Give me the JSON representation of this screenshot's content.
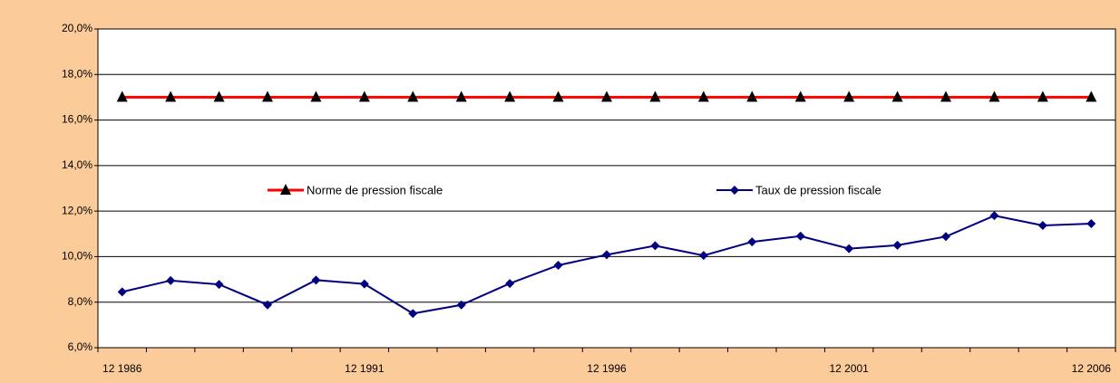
{
  "chart_data": {
    "type": "line",
    "categories": [
      "12 1986",
      null,
      null,
      null,
      null,
      "12 1991",
      null,
      null,
      null,
      null,
      "12 1996",
      null,
      null,
      null,
      null,
      "12 2001",
      null,
      null,
      null,
      null,
      "12 2006"
    ],
    "series": [
      {
        "name": "Norme de pression fiscale",
        "color": "#ff0000",
        "marker": "triangle",
        "marker_color": "#000000",
        "values": [
          17,
          17,
          17,
          17,
          17,
          17,
          17,
          17,
          17,
          17,
          17,
          17,
          17,
          17,
          17,
          17,
          17,
          17,
          17,
          17,
          17
        ]
      },
      {
        "name": "Taux de pression fiscale",
        "color": "#000080",
        "marker": "diamond",
        "marker_color": "#000080",
        "values": [
          8.45,
          8.95,
          8.78,
          7.88,
          8.97,
          8.8,
          7.5,
          7.88,
          8.82,
          9.62,
          10.08,
          10.48,
          10.05,
          10.65,
          10.9,
          10.35,
          10.5,
          10.88,
          11.8,
          11.37,
          11.45
        ]
      }
    ],
    "ylim": [
      6,
      20
    ],
    "yticks": [
      {
        "value": 6,
        "label": "6,0%"
      },
      {
        "value": 8,
        "label": "8,0%"
      },
      {
        "value": 10,
        "label": "10,0%"
      },
      {
        "value": 12,
        "label": "12,0%"
      },
      {
        "value": 14,
        "label": "14,0%"
      },
      {
        "value": 16,
        "label": "16,0%"
      },
      {
        "value": 18,
        "label": "18,0%"
      },
      {
        "value": 20,
        "label": "20,0%"
      }
    ],
    "grid": true,
    "legend": "center"
  }
}
